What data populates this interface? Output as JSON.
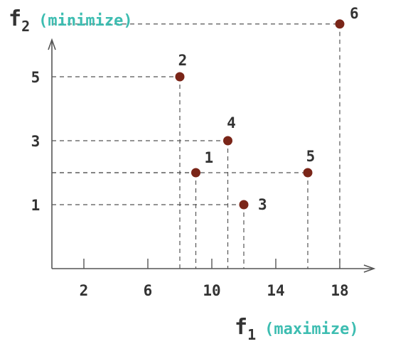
{
  "colors": {
    "point": "#7a2518",
    "accent": "#3dbdb1",
    "axis": "#555555",
    "text": "#333333"
  },
  "chart_data": {
    "type": "scatter",
    "title": "",
    "xlabel": {
      "var": "f",
      "sub": "1",
      "note": "(maximize)"
    },
    "ylabel": {
      "var": "f",
      "sub": "2",
      "note": "(minimize)"
    },
    "xlim": [
      0,
      20
    ],
    "ylim": [
      -1,
      7.5
    ],
    "xticks": [
      2,
      6,
      10,
      14,
      18
    ],
    "yticks": [
      1,
      3,
      5
    ],
    "grid": false,
    "legend": "none",
    "points": [
      {
        "label": "1",
        "x": 9,
        "y": 2
      },
      {
        "label": "2",
        "x": 8,
        "y": 5
      },
      {
        "label": "3",
        "x": 12,
        "y": 1
      },
      {
        "label": "4",
        "x": 11,
        "y": 3
      },
      {
        "label": "5",
        "x": 16,
        "y": 2
      },
      {
        "label": "6",
        "x": 18,
        "y": 6.65
      }
    ]
  }
}
